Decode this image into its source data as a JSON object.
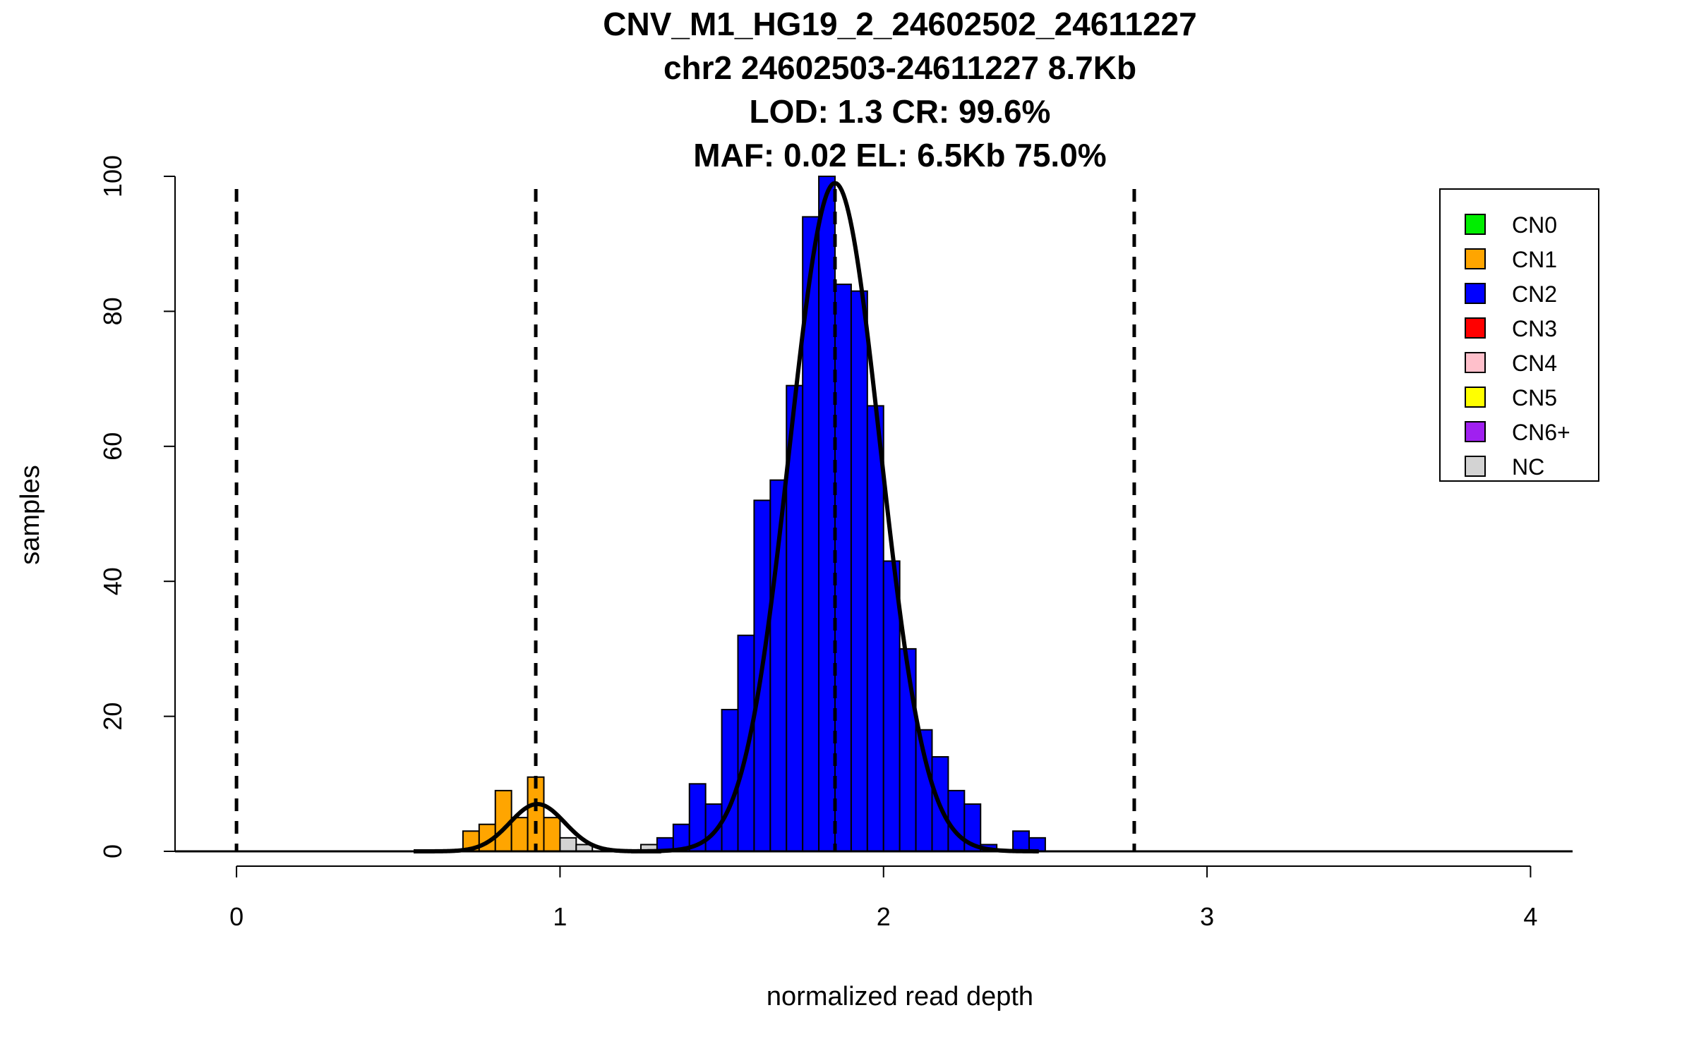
{
  "chart_data": {
    "type": "bar",
    "title_lines": [
      "CNV_M1_HG19_2_24602502_24611227",
      "chr2 24602503-24611227 8.7Kb",
      "LOD: 1.3 CR: 99.6%",
      "MAF: 0.02 EL: 6.5Kb 75.0%"
    ],
    "xlabel": "normalized read depth",
    "ylabel": "samples",
    "xlim": [
      -0.19,
      4.13
    ],
    "ylim": [
      0,
      100
    ],
    "xticks": [
      0,
      1,
      2,
      3,
      4
    ],
    "yticks": [
      0,
      20,
      40,
      60,
      80,
      100
    ],
    "bin_width": 0.05,
    "bins": [
      {
        "x0": 0.7,
        "count": 3,
        "cn": "CN1"
      },
      {
        "x0": 0.75,
        "count": 4,
        "cn": "CN1"
      },
      {
        "x0": 0.8,
        "count": 9,
        "cn": "CN1"
      },
      {
        "x0": 0.85,
        "count": 5,
        "cn": "CN1"
      },
      {
        "x0": 0.9,
        "count": 11,
        "cn": "CN1"
      },
      {
        "x0": 0.95,
        "count": 5,
        "cn": "CN1"
      },
      {
        "x0": 1.0,
        "count": 2,
        "cn": "NC"
      },
      {
        "x0": 1.05,
        "count": 1,
        "cn": "NC"
      },
      {
        "x0": 1.25,
        "count": 1,
        "cn": "NC"
      },
      {
        "x0": 1.3,
        "count": 2,
        "cn": "CN2"
      },
      {
        "x0": 1.35,
        "count": 4,
        "cn": "CN2"
      },
      {
        "x0": 1.4,
        "count": 10,
        "cn": "CN2"
      },
      {
        "x0": 1.45,
        "count": 7,
        "cn": "CN2"
      },
      {
        "x0": 1.5,
        "count": 21,
        "cn": "CN2"
      },
      {
        "x0": 1.55,
        "count": 32,
        "cn": "CN2"
      },
      {
        "x0": 1.6,
        "count": 52,
        "cn": "CN2"
      },
      {
        "x0": 1.65,
        "count": 55,
        "cn": "CN2"
      },
      {
        "x0": 1.7,
        "count": 69,
        "cn": "CN2"
      },
      {
        "x0": 1.75,
        "count": 94,
        "cn": "CN2"
      },
      {
        "x0": 1.8,
        "count": 100,
        "cn": "CN2"
      },
      {
        "x0": 1.85,
        "count": 84,
        "cn": "CN2"
      },
      {
        "x0": 1.9,
        "count": 83,
        "cn": "CN2"
      },
      {
        "x0": 1.95,
        "count": 66,
        "cn": "CN2"
      },
      {
        "x0": 2.0,
        "count": 43,
        "cn": "CN2"
      },
      {
        "x0": 2.05,
        "count": 30,
        "cn": "CN2"
      },
      {
        "x0": 2.1,
        "count": 18,
        "cn": "CN2"
      },
      {
        "x0": 2.15,
        "count": 14,
        "cn": "CN2"
      },
      {
        "x0": 2.2,
        "count": 9,
        "cn": "CN2"
      },
      {
        "x0": 2.25,
        "count": 7,
        "cn": "CN2"
      },
      {
        "x0": 2.3,
        "count": 1,
        "cn": "CN2"
      },
      {
        "x0": 2.4,
        "count": 3,
        "cn": "CN2"
      },
      {
        "x0": 2.45,
        "count": 2,
        "cn": "CN2"
      }
    ],
    "fit_curves": [
      {
        "mean": 0.93,
        "sd": 0.085,
        "peak": 7
      },
      {
        "mean": 1.85,
        "sd": 0.14,
        "peak": 99
      }
    ],
    "dashed_lines": [
      0,
      0.925,
      1.85,
      2.775
    ],
    "legend": {
      "placement": "top-right",
      "entries": [
        {
          "label": "CN0",
          "color": "#00ee00"
        },
        {
          "label": "CN1",
          "color": "#ffa500"
        },
        {
          "label": "CN2",
          "color": "#0000ff"
        },
        {
          "label": "CN3",
          "color": "#ff0000"
        },
        {
          "label": "CN4",
          "color": "#ffc0cb"
        },
        {
          "label": "CN5",
          "color": "#ffff00"
        },
        {
          "label": "CN6+",
          "color": "#a020f0"
        },
        {
          "label": "NC",
          "color": "#d3d3d3"
        }
      ]
    }
  }
}
